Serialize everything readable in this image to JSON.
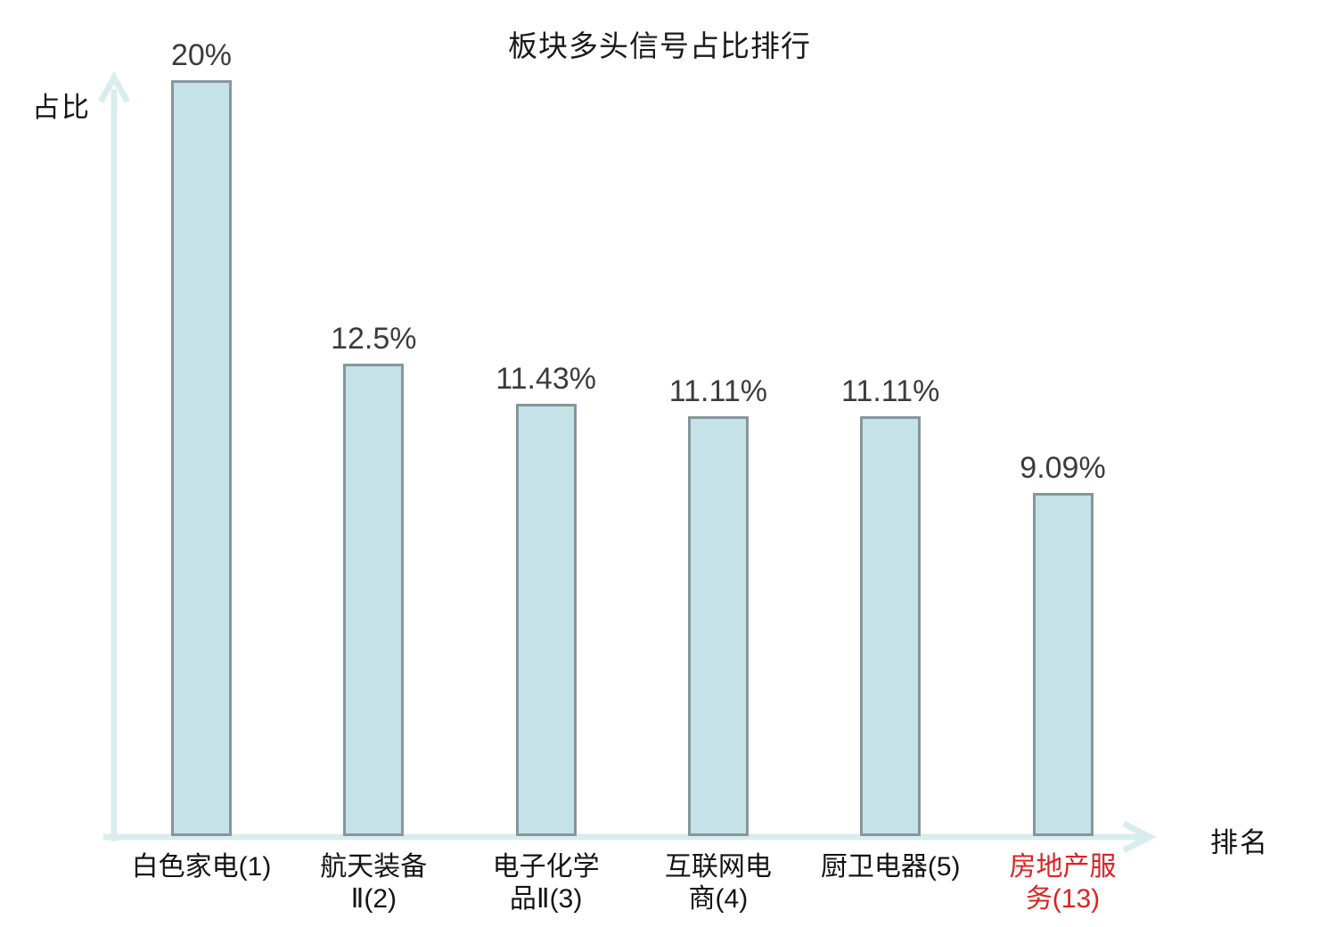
{
  "chart_data": {
    "type": "bar",
    "title": "板块多头信号占比排行",
    "xlabel": "排名",
    "ylabel": "占比",
    "ylim": [
      0,
      20
    ],
    "grid": false,
    "legend": null,
    "categories": [
      "白色家电(1)",
      "航天装备Ⅱ(2)",
      "电子化学品Ⅱ(3)",
      "互联网电商(4)",
      "厨卫电器(5)",
      "房地产服务(13)"
    ],
    "category_display_lines": [
      [
        "白色家电(1)"
      ],
      [
        "航天装备",
        "Ⅱ(2)"
      ],
      [
        "电子化学",
        "品Ⅱ(3)"
      ],
      [
        "互联网电",
        "商(4)"
      ],
      [
        "厨卫电器(5)"
      ],
      [
        "房地产服",
        "务(13)"
      ]
    ],
    "values": [
      20,
      12.5,
      11.43,
      11.11,
      11.11,
      9.09
    ],
    "value_labels": [
      "20%",
      "12.5%",
      "11.43%",
      "11.11%",
      "11.11%",
      "9.09%"
    ],
    "highlighted_category_index": 5,
    "colors": {
      "bar_fill": "#c5e2e7",
      "bar_border": "#85979b",
      "axis": "#daedee",
      "value_text": "#3c3c3c",
      "category_text": "#141414",
      "highlight_text": "#dd2222",
      "title_text": "#1a1a1a"
    }
  }
}
